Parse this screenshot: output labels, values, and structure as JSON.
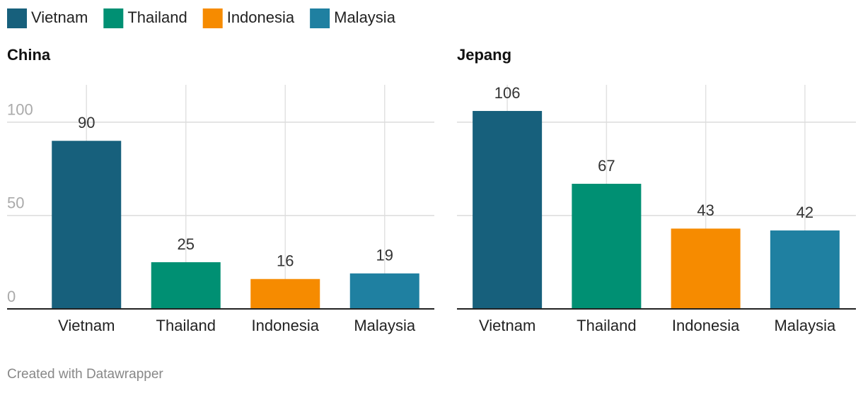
{
  "legend": {
    "items": [
      {
        "label": "Vietnam",
        "color": "#17607c"
      },
      {
        "label": "Thailand",
        "color": "#009073"
      },
      {
        "label": "Indonesia",
        "color": "#f68b00"
      },
      {
        "label": "Malaysia",
        "color": "#1f80a1"
      }
    ]
  },
  "chart_data": [
    {
      "type": "bar",
      "title": "China",
      "categories": [
        "Vietnam",
        "Thailand",
        "Indonesia",
        "Malaysia"
      ],
      "values": [
        90,
        25,
        16,
        19
      ],
      "colors": [
        "#17607c",
        "#009073",
        "#f68b00",
        "#1f80a1"
      ],
      "ylim": [
        0,
        120
      ],
      "yticks": [
        0,
        50,
        100
      ],
      "show_ytick_labels": true,
      "grid": true
    },
    {
      "type": "bar",
      "title": "Jepang",
      "categories": [
        "Vietnam",
        "Thailand",
        "Indonesia",
        "Malaysia"
      ],
      "values": [
        106,
        67,
        43,
        42
      ],
      "colors": [
        "#17607c",
        "#009073",
        "#f68b00",
        "#1f80a1"
      ],
      "ylim": [
        0,
        120
      ],
      "yticks": [
        0,
        50,
        100
      ],
      "show_ytick_labels": false,
      "grid": true
    }
  ],
  "footer": "Created with Datawrapper"
}
